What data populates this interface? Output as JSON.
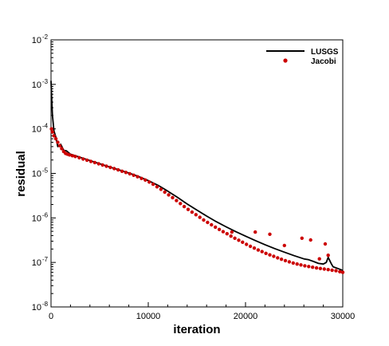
{
  "chart_data": {
    "type": "line",
    "title": "",
    "xlabel": "iteration",
    "ylabel": "residual",
    "xlim": [
      0,
      30000
    ],
    "ylim": [
      1e-08,
      0.01
    ],
    "yscale": "log",
    "grid": false,
    "legend_position": "top-right",
    "xticks": [
      {
        "value": 0,
        "label": "0"
      },
      {
        "value": 10000,
        "label": "10000"
      },
      {
        "value": 20000,
        "label": "20000"
      },
      {
        "value": 30000,
        "label": "30000"
      }
    ],
    "yticks": [
      {
        "value": 1e-08,
        "base": "10",
        "exp": "-8"
      },
      {
        "value": 1e-07,
        "base": "10",
        "exp": "-7"
      },
      {
        "value": 1e-06,
        "base": "10",
        "exp": "-6"
      },
      {
        "value": 1e-05,
        "base": "10",
        "exp": "-5"
      },
      {
        "value": 0.0001,
        "base": "10",
        "exp": "-4"
      },
      {
        "value": 0.001,
        "base": "10",
        "exp": "-3"
      },
      {
        "value": 0.01,
        "base": "10",
        "exp": "-2"
      }
    ],
    "series": [
      {
        "name": "LUSGS",
        "style": "line",
        "color": "#000000",
        "x": [
          0,
          50,
          150,
          300,
          500,
          700,
          1000,
          1300,
          1600,
          2000,
          2500,
          3000,
          4000,
          5000,
          6000,
          7000,
          8000,
          9000,
          10000,
          11000,
          12000,
          13000,
          14000,
          15000,
          16000,
          17000,
          18000,
          19000,
          20000,
          21000,
          22000,
          23000,
          24000,
          25000,
          26000,
          26500,
          27000,
          27500,
          28000,
          28300,
          28500,
          28800,
          29000,
          29500,
          30000
        ],
        "y": [
          0.0012,
          0.0006,
          0.0002,
          9e-05,
          6.5e-05,
          4e-05,
          4.5e-05,
          3.3e-05,
          3.2e-05,
          2.7e-05,
          2.5e-05,
          2.3e-05,
          1.95e-05,
          1.65e-05,
          1.4e-05,
          1.2e-05,
          1.02e-05,
          8.5e-06,
          6.9e-06,
          5.4e-06,
          4e-06,
          2.9e-06,
          2.05e-06,
          1.5e-06,
          1.1e-06,
          8.2e-07,
          6.3e-07,
          4.9e-07,
          3.9e-07,
          3.1e-07,
          2.5e-07,
          2.05e-07,
          1.7e-07,
          1.42e-07,
          1.2e-07,
          1.15e-07,
          1.05e-07,
          9.5e-08,
          9.2e-08,
          1e-07,
          1.3e-07,
          9.5e-08,
          8e-08,
          7.3e-08,
          6.6e-08
        ]
      },
      {
        "name": "Jacobi",
        "style": "markers",
        "color": "#cc0000",
        "x": [
          50,
          150,
          300,
          500,
          700,
          900,
          1100,
          1300,
          1500,
          1700,
          1900,
          2200,
          2500,
          2900,
          3300,
          3700,
          4100,
          4500,
          4900,
          5300,
          5700,
          6100,
          6500,
          6900,
          7300,
          7700,
          8100,
          8500,
          8900,
          9300,
          9700,
          10100,
          10500,
          10900,
          11300,
          11700,
          12100,
          12500,
          12900,
          13300,
          13700,
          14100,
          14500,
          14900,
          15300,
          15700,
          16100,
          16500,
          16900,
          17300,
          17700,
          18100,
          18500,
          18900,
          19300,
          19700,
          20100,
          20500,
          20900,
          21300,
          21700,
          22100,
          22500,
          22900,
          23300,
          23700,
          24100,
          24500,
          24900,
          25300,
          25700,
          26100,
          26500,
          26900,
          27300,
          27700,
          28100,
          28500,
          28900,
          29300,
          29700,
          30000,
          18600,
          21000,
          22500,
          24000,
          25800,
          26700,
          28200,
          28500,
          27600
        ],
        "y": [
          0.0001,
          8.5e-05,
          7e-05,
          6e-05,
          5e-05,
          4.2e-05,
          3.6e-05,
          3.1e-05,
          2.8e-05,
          2.7e-05,
          2.6e-05,
          2.5e-05,
          2.4e-05,
          2.25e-05,
          2.1e-05,
          1.98e-05,
          1.86e-05,
          1.75e-05,
          1.64e-05,
          1.54e-05,
          1.45e-05,
          1.36e-05,
          1.28e-05,
          1.2e-05,
          1.12e-05,
          1.05e-05,
          9.8e-06,
          9.1e-06,
          8.4e-06,
          7.7e-06,
          7.1e-06,
          6.4e-06,
          5.7e-06,
          5e-06,
          4.4e-06,
          3.8e-06,
          3.3e-06,
          2.85e-06,
          2.45e-06,
          2.1e-06,
          1.8e-06,
          1.55e-06,
          1.35e-06,
          1.18e-06,
          1.03e-06,
          9e-07,
          7.9e-07,
          7e-07,
          6.2e-07,
          5.5e-07,
          4.9e-07,
          4.4e-07,
          3.9e-07,
          3.5e-07,
          3.15e-07,
          2.85e-07,
          2.55e-07,
          2.3e-07,
          2.1e-07,
          1.9e-07,
          1.75e-07,
          1.6e-07,
          1.48e-07,
          1.37e-07,
          1.27e-07,
          1.18e-07,
          1.1e-07,
          1.03e-07,
          9.7e-08,
          9.2e-08,
          8.8e-08,
          8.4e-08,
          8.1e-08,
          7.8e-08,
          7.5e-08,
          7.3e-08,
          7.1e-08,
          6.9e-08,
          6.7e-08,
          6.5e-08,
          6.2e-08,
          6e-08,
          4.8e-07,
          4.8e-07,
          4.3e-07,
          2.4e-07,
          3.5e-07,
          3.2e-07,
          2.6e-07,
          1.45e-07,
          1.2e-07
        ]
      }
    ]
  }
}
